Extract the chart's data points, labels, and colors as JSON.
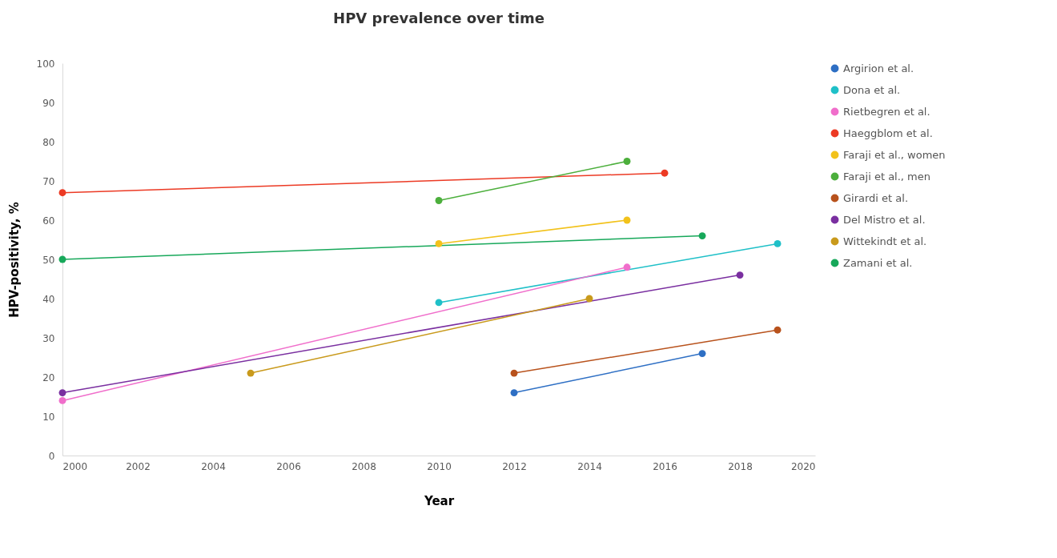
{
  "chart_data": {
    "type": "line",
    "title": "HPV prevalence over time",
    "xlabel": "Year",
    "ylabel": "HPV-positivity, %",
    "xlim": [
      2000,
      2020
    ],
    "xticks": [
      2000,
      2002,
      2004,
      2006,
      2008,
      2010,
      2012,
      2014,
      2016,
      2018,
      2020
    ],
    "ylim": [
      0,
      100
    ],
    "yticks": [
      0,
      10,
      20,
      30,
      40,
      50,
      60,
      70,
      80,
      90,
      100
    ],
    "grid": false,
    "legend": "right",
    "marker": "circle",
    "line_style": "solid",
    "series": [
      {
        "name": "Argirion et al.",
        "color": "#2e6fc4",
        "x": [
          2012,
          2017
        ],
        "values": [
          16,
          26
        ]
      },
      {
        "name": "Dona et al.",
        "color": "#1fc0c8",
        "x": [
          2010,
          2019
        ],
        "values": [
          39,
          54
        ]
      },
      {
        "name": "Rietbegren et al.",
        "color": "#f06ecb",
        "x": [
          2000,
          2015
        ],
        "values": [
          14,
          48
        ]
      },
      {
        "name": "Haeggblom et al.",
        "color": "#ec3a24",
        "x": [
          2000,
          2016
        ],
        "values": [
          67,
          72
        ]
      },
      {
        "name": "Faraji et al., women",
        "color": "#f2c21b",
        "x": [
          2010,
          2015
        ],
        "values": [
          54,
          60
        ]
      },
      {
        "name": "Faraji et al., men",
        "color": "#4caf3c",
        "x": [
          2010,
          2015
        ],
        "values": [
          65,
          75
        ]
      },
      {
        "name": "Girardi et al.",
        "color": "#b8521c",
        "x": [
          2012,
          2019
        ],
        "values": [
          21,
          32
        ]
      },
      {
        "name": "Del Mistro et al.",
        "color": "#7a2fa0",
        "x": [
          2000,
          2018
        ],
        "values": [
          16,
          46
        ]
      },
      {
        "name": "Wittekindt et al.",
        "color": "#c99a1c",
        "x": [
          2005,
          2014
        ],
        "values": [
          21,
          40
        ]
      },
      {
        "name": "Zamani et al.",
        "color": "#17a85a",
        "x": [
          2000,
          2017
        ],
        "values": [
          50,
          56
        ]
      }
    ]
  }
}
